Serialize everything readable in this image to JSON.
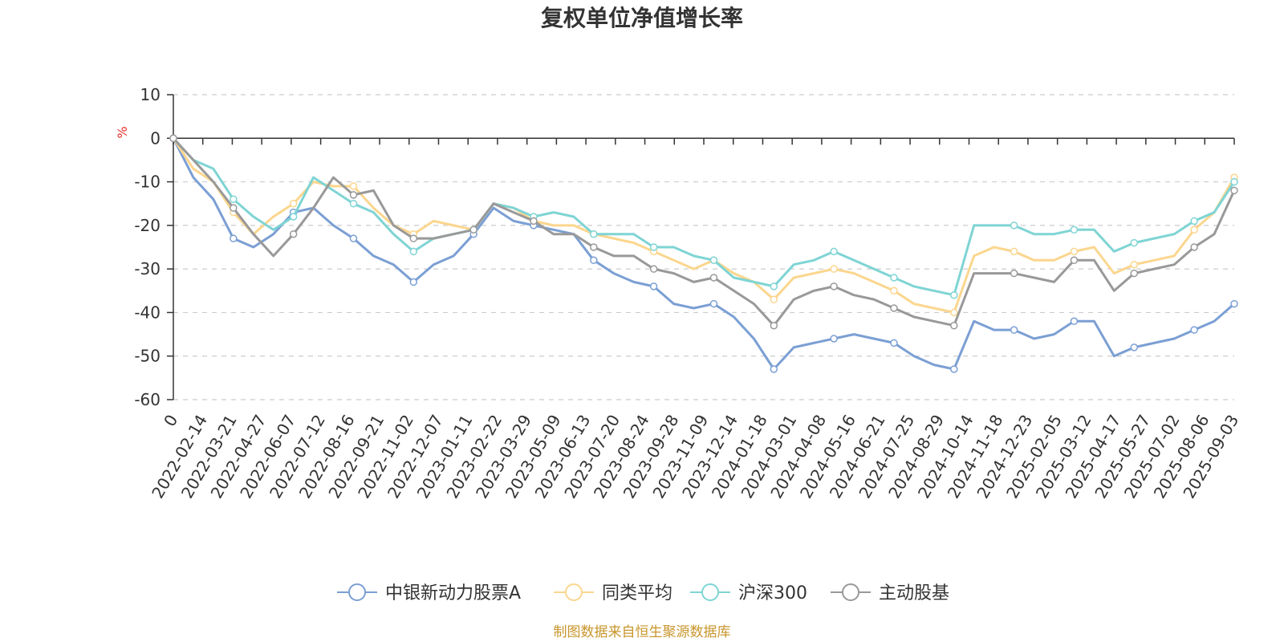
{
  "chart_data": {
    "type": "line",
    "title": "复权单位净值增长率",
    "ylabel": "%",
    "ylim": [
      -60,
      10
    ],
    "yticks": [
      10,
      0,
      -10,
      -20,
      -30,
      -40,
      -50,
      -60
    ],
    "x_tick_labels": [
      "0",
      "2022-02-14",
      "2022-03-21",
      "2022-04-27",
      "2022-06-07",
      "2022-07-12",
      "2022-08-16",
      "2022-09-21",
      "2022-11-02",
      "2022-12-07",
      "2023-01-11",
      "2023-02-22",
      "2023-03-29",
      "2023-05-09",
      "2023-06-13",
      "2023-07-20",
      "2023-08-24",
      "2023-09-28",
      "2023-11-09",
      "2023-12-14",
      "2024-01-18",
      "2024-03-01",
      "2024-04-08",
      "2024-05-16",
      "2024-06-21",
      "2024-07-25",
      "2024-08-29",
      "2024-10-14",
      "2024-11-18",
      "2024-12-23",
      "2025-02-05",
      "2025-03-12",
      "2025-04-17",
      "2025-05-27",
      "2025-07-02",
      "2025-08-06",
      "2025-09-03"
    ],
    "legend_position": "bottom",
    "grid": true,
    "series": [
      {
        "name": "中银新动力股票A",
        "color": "#7b9fd4",
        "values": [
          0,
          -9,
          -14,
          -23,
          -25,
          -22,
          -17,
          -16,
          -20,
          -23,
          -27,
          -29,
          -33,
          -29,
          -27,
          -22,
          -16,
          -19,
          -20,
          -21,
          -22,
          -28,
          -31,
          -33,
          -34,
          -38,
          -39,
          -38,
          -41,
          -46,
          -53,
          -48,
          -47,
          -46,
          -45,
          -46,
          -47,
          -50,
          -52,
          -53,
          -42,
          -44,
          -44,
          -46,
          -45,
          -42,
          -42,
          -50,
          -48,
          -47,
          -46,
          -44,
          -42,
          -38
        ]
      },
      {
        "name": "同类平均",
        "color": "#fbd68e",
        "values": [
          0,
          -7,
          -10,
          -17,
          -22,
          -18,
          -15,
          -10,
          -11,
          -11,
          -16,
          -20,
          -22,
          -19,
          -20,
          -21,
          -15,
          -16,
          -19,
          -20,
          -20,
          -22,
          -23,
          -24,
          -26,
          -28,
          -30,
          -28,
          -31,
          -33,
          -37,
          -32,
          -31,
          -30,
          -31,
          -33,
          -35,
          -38,
          -39,
          -40,
          -27,
          -25,
          -26,
          -28,
          -28,
          -26,
          -25,
          -31,
          -29,
          -28,
          -27,
          -21,
          -17,
          -9
        ]
      },
      {
        "name": "沪深300",
        "color": "#7fd4d4",
        "values": [
          0,
          -5,
          -7,
          -14,
          -18,
          -21,
          -18,
          -9,
          -12,
          -15,
          -17,
          -22,
          -26,
          -23,
          -22,
          -21,
          -15,
          -16,
          -18,
          -17,
          -18,
          -22,
          -22,
          -22,
          -25,
          -25,
          -27,
          -28,
          -32,
          -33,
          -34,
          -29,
          -28,
          -26,
          -28,
          -30,
          -32,
          -34,
          -35,
          -36,
          -20,
          -20,
          -20,
          -22,
          -22,
          -21,
          -21,
          -26,
          -24,
          -23,
          -22,
          -19,
          -17,
          -10
        ]
      },
      {
        "name": "主动股基",
        "color": "#999999",
        "values": [
          0,
          -5,
          -10,
          -16,
          -22,
          -27,
          -22,
          -16,
          -9,
          -13,
          -12,
          -20,
          -23,
          -23,
          -22,
          -21,
          -15,
          -17,
          -19,
          -22,
          -22,
          -25,
          -27,
          -27,
          -30,
          -31,
          -33,
          -32,
          -35,
          -38,
          -43,
          -37,
          -35,
          -34,
          -36,
          -37,
          -39,
          -41,
          -42,
          -43,
          -31,
          -31,
          -31,
          -32,
          -33,
          -28,
          -28,
          -35,
          -31,
          -30,
          -29,
          -25,
          -22,
          -12
        ]
      }
    ]
  },
  "legend": {
    "items": [
      "中银新动力股票A",
      "同类平均",
      "沪深300",
      "主动股基"
    ]
  },
  "footer": {
    "source": "制图数据来自恒生聚源数据库"
  }
}
